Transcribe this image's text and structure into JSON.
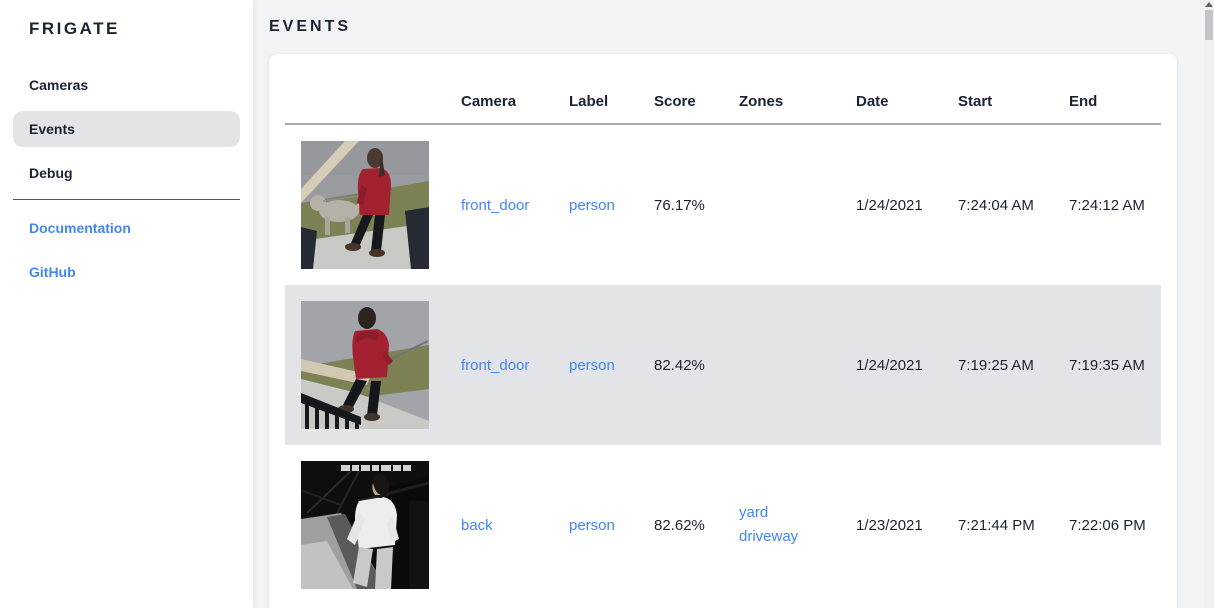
{
  "app": {
    "title": "FRIGATE"
  },
  "sidebar": {
    "items": [
      {
        "label": "Cameras",
        "active": false
      },
      {
        "label": "Events",
        "active": true
      },
      {
        "label": "Debug",
        "active": false
      }
    ],
    "links": [
      {
        "label": "Documentation"
      },
      {
        "label": "GitHub"
      }
    ]
  },
  "main": {
    "title": "EVENTS",
    "table": {
      "columns": [
        "Camera",
        "Label",
        "Score",
        "Zones",
        "Date",
        "Start",
        "End"
      ],
      "rows": [
        {
          "thumb": "person-red-coat-with-dog",
          "camera": "front_door",
          "label": "person",
          "score": "76.17%",
          "zones": [],
          "date": "1/24/2021",
          "start": "7:24:04 AM",
          "end": "7:24:12 AM",
          "highlighted": false
        },
        {
          "thumb": "person-red-hoodie-walking",
          "camera": "front_door",
          "label": "person",
          "score": "82.42%",
          "zones": [],
          "date": "1/24/2021",
          "start": "7:19:25 AM",
          "end": "7:19:35 AM",
          "highlighted": true
        },
        {
          "thumb": "person-night-infrared",
          "camera": "back",
          "label": "person",
          "score": "82.62%",
          "zones": [
            "yard",
            "driveway"
          ],
          "date": "1/23/2021",
          "start": "7:21:44 PM",
          "end": "7:22:06 PM",
          "highlighted": false
        }
      ]
    }
  },
  "icons": {
    "scrollbar_up": "scroll-up-arrow-icon"
  },
  "colors": {
    "page_bg": "#f1f3f5",
    "text_dark": "#1a2332",
    "accent_link": "#4286f4",
    "sidebar_active_bg": "#e4e4e7",
    "row_highlight_bg": "#e3e4e8"
  }
}
